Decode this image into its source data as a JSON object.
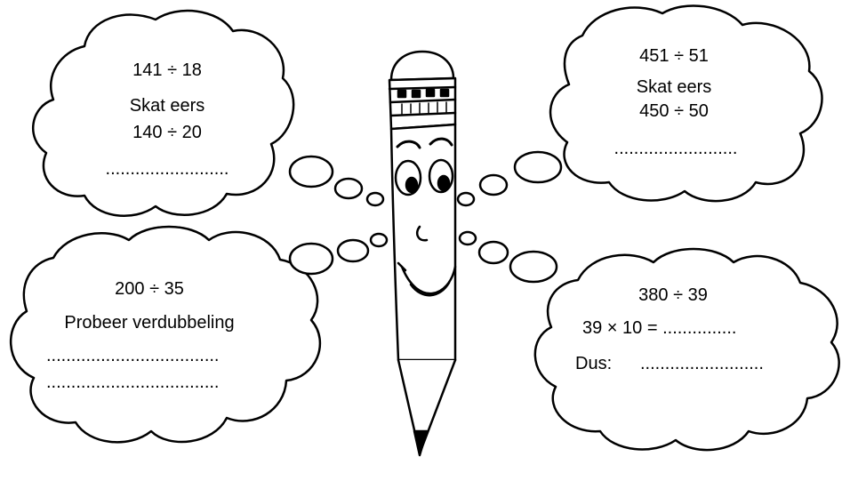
{
  "clouds": {
    "top_left": {
      "problem": "141 ÷ 18",
      "hint": "Skat eers",
      "estimate": "140 ÷ 20",
      "answer_line": "........................."
    },
    "top_right": {
      "problem": "451 ÷ 51",
      "hint": "Skat eers",
      "estimate": "450 ÷ 50",
      "answer_line": "........................."
    },
    "bottom_left": {
      "problem": "200 ÷ 35",
      "hint": "Probeer verdubbeling",
      "answer_line_1": "...................................",
      "answer_line_2": "..................................."
    },
    "bottom_right": {
      "problem": "380 ÷ 39",
      "step": "39 × 10 = ...............",
      "result_label": "Dus:",
      "result_line": "........................."
    }
  },
  "colors": {
    "ink": "#000000",
    "paper": "#ffffff"
  }
}
